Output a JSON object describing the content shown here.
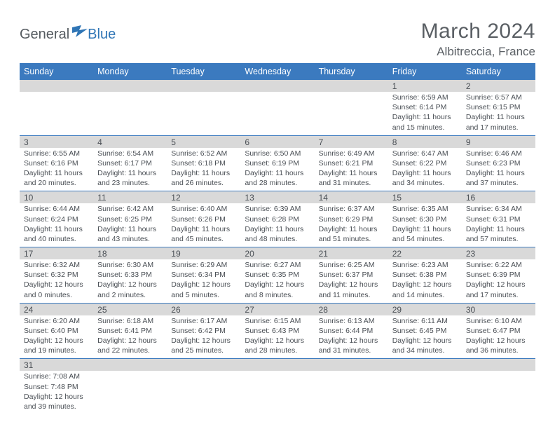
{
  "logo": {
    "part1": "General",
    "part2": "Blue"
  },
  "title": "March 2024",
  "location": "Albitreccia, France",
  "colors": {
    "header_bg": "#3b7abf",
    "header_text": "#ffffff",
    "daynum_bg": "#d9d9d9",
    "text": "#4a4f55",
    "rule": "#3b7abf",
    "logo_gray": "#555b60",
    "logo_blue": "#2f75b5"
  },
  "weekdays": [
    "Sunday",
    "Monday",
    "Tuesday",
    "Wednesday",
    "Thursday",
    "Friday",
    "Saturday"
  ],
  "weeks": [
    [
      null,
      null,
      null,
      null,
      null,
      {
        "n": "1",
        "sr": "6:59 AM",
        "ss": "6:14 PM",
        "dl": "11 hours and 15 minutes."
      },
      {
        "n": "2",
        "sr": "6:57 AM",
        "ss": "6:15 PM",
        "dl": "11 hours and 17 minutes."
      }
    ],
    [
      {
        "n": "3",
        "sr": "6:55 AM",
        "ss": "6:16 PM",
        "dl": "11 hours and 20 minutes."
      },
      {
        "n": "4",
        "sr": "6:54 AM",
        "ss": "6:17 PM",
        "dl": "11 hours and 23 minutes."
      },
      {
        "n": "5",
        "sr": "6:52 AM",
        "ss": "6:18 PM",
        "dl": "11 hours and 26 minutes."
      },
      {
        "n": "6",
        "sr": "6:50 AM",
        "ss": "6:19 PM",
        "dl": "11 hours and 28 minutes."
      },
      {
        "n": "7",
        "sr": "6:49 AM",
        "ss": "6:21 PM",
        "dl": "11 hours and 31 minutes."
      },
      {
        "n": "8",
        "sr": "6:47 AM",
        "ss": "6:22 PM",
        "dl": "11 hours and 34 minutes."
      },
      {
        "n": "9",
        "sr": "6:46 AM",
        "ss": "6:23 PM",
        "dl": "11 hours and 37 minutes."
      }
    ],
    [
      {
        "n": "10",
        "sr": "6:44 AM",
        "ss": "6:24 PM",
        "dl": "11 hours and 40 minutes."
      },
      {
        "n": "11",
        "sr": "6:42 AM",
        "ss": "6:25 PM",
        "dl": "11 hours and 43 minutes."
      },
      {
        "n": "12",
        "sr": "6:40 AM",
        "ss": "6:26 PM",
        "dl": "11 hours and 45 minutes."
      },
      {
        "n": "13",
        "sr": "6:39 AM",
        "ss": "6:28 PM",
        "dl": "11 hours and 48 minutes."
      },
      {
        "n": "14",
        "sr": "6:37 AM",
        "ss": "6:29 PM",
        "dl": "11 hours and 51 minutes."
      },
      {
        "n": "15",
        "sr": "6:35 AM",
        "ss": "6:30 PM",
        "dl": "11 hours and 54 minutes."
      },
      {
        "n": "16",
        "sr": "6:34 AM",
        "ss": "6:31 PM",
        "dl": "11 hours and 57 minutes."
      }
    ],
    [
      {
        "n": "17",
        "sr": "6:32 AM",
        "ss": "6:32 PM",
        "dl": "12 hours and 0 minutes."
      },
      {
        "n": "18",
        "sr": "6:30 AM",
        "ss": "6:33 PM",
        "dl": "12 hours and 2 minutes."
      },
      {
        "n": "19",
        "sr": "6:29 AM",
        "ss": "6:34 PM",
        "dl": "12 hours and 5 minutes."
      },
      {
        "n": "20",
        "sr": "6:27 AM",
        "ss": "6:35 PM",
        "dl": "12 hours and 8 minutes."
      },
      {
        "n": "21",
        "sr": "6:25 AM",
        "ss": "6:37 PM",
        "dl": "12 hours and 11 minutes."
      },
      {
        "n": "22",
        "sr": "6:23 AM",
        "ss": "6:38 PM",
        "dl": "12 hours and 14 minutes."
      },
      {
        "n": "23",
        "sr": "6:22 AM",
        "ss": "6:39 PM",
        "dl": "12 hours and 17 minutes."
      }
    ],
    [
      {
        "n": "24",
        "sr": "6:20 AM",
        "ss": "6:40 PM",
        "dl": "12 hours and 19 minutes."
      },
      {
        "n": "25",
        "sr": "6:18 AM",
        "ss": "6:41 PM",
        "dl": "12 hours and 22 minutes."
      },
      {
        "n": "26",
        "sr": "6:17 AM",
        "ss": "6:42 PM",
        "dl": "12 hours and 25 minutes."
      },
      {
        "n": "27",
        "sr": "6:15 AM",
        "ss": "6:43 PM",
        "dl": "12 hours and 28 minutes."
      },
      {
        "n": "28",
        "sr": "6:13 AM",
        "ss": "6:44 PM",
        "dl": "12 hours and 31 minutes."
      },
      {
        "n": "29",
        "sr": "6:11 AM",
        "ss": "6:45 PM",
        "dl": "12 hours and 34 minutes."
      },
      {
        "n": "30",
        "sr": "6:10 AM",
        "ss": "6:47 PM",
        "dl": "12 hours and 36 minutes."
      }
    ],
    [
      {
        "n": "31",
        "sr": "7:08 AM",
        "ss": "7:48 PM",
        "dl": "12 hours and 39 minutes."
      },
      null,
      null,
      null,
      null,
      null,
      null
    ]
  ],
  "labels": {
    "sunrise": "Sunrise: ",
    "sunset": "Sunset: ",
    "daylight": "Daylight: "
  }
}
